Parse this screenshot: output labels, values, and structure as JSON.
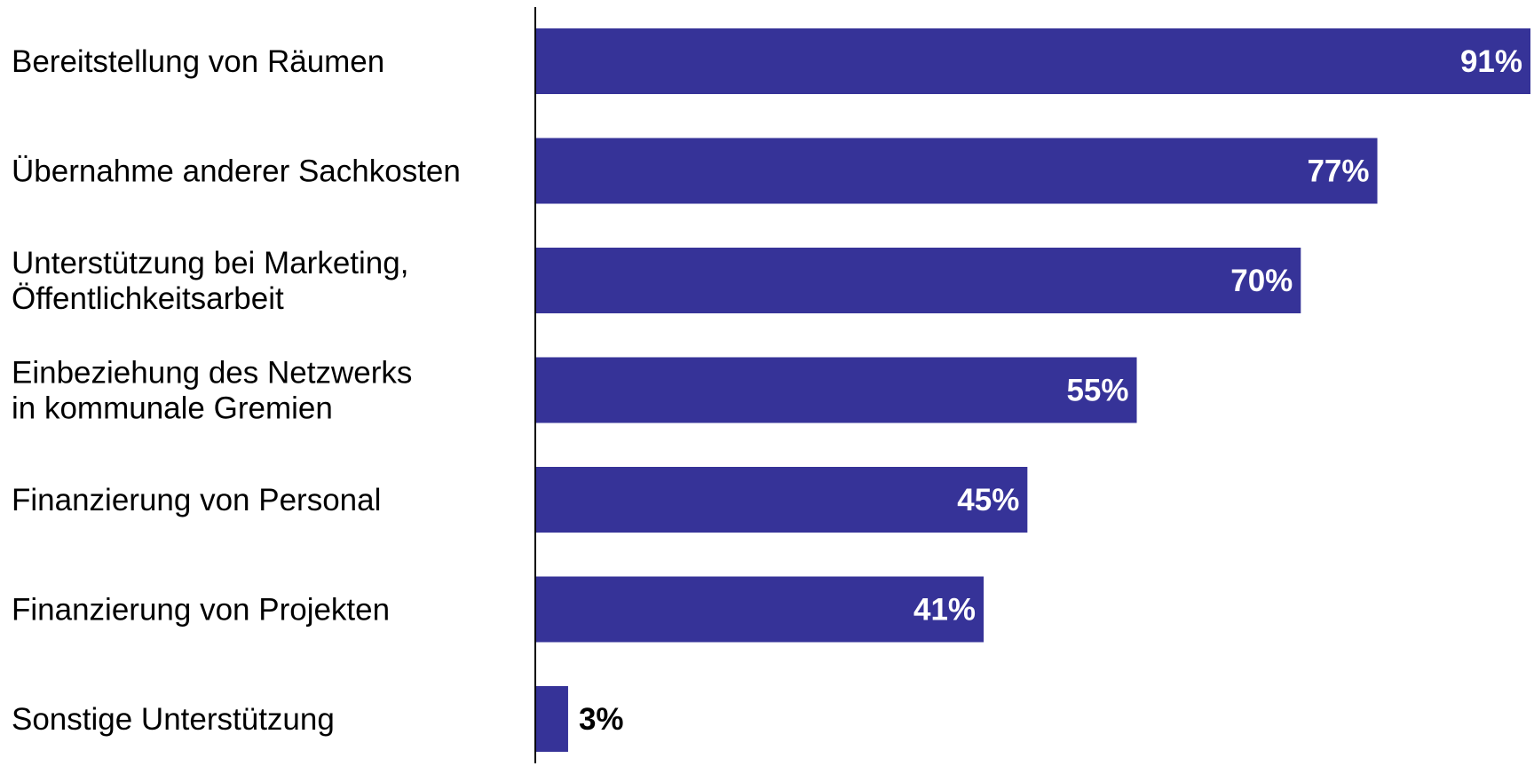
{
  "chart_data": {
    "type": "bar",
    "orientation": "horizontal",
    "categories": [
      [
        "Bereitstellung von Räumen"
      ],
      [
        "Übernahme anderer Sachkosten"
      ],
      [
        "Unterstützung bei Marketing,",
        "Öffentlichkeitsarbeit"
      ],
      [
        "Einbeziehung des Netzwerks",
        "in kommunale Gremien"
      ],
      [
        "Finanzierung von Personal"
      ],
      [
        "Finanzierung von Projekten"
      ],
      [
        "Sonstige Unterstützung"
      ]
    ],
    "values": [
      91,
      77,
      70,
      55,
      45,
      41,
      3
    ],
    "value_labels": [
      "91%",
      "77%",
      "70%",
      "55%",
      "45%",
      "41%",
      "3%"
    ],
    "unit": "%",
    "xlim": [
      0,
      91
    ],
    "grid": false,
    "legend": "none",
    "colors": {
      "bar": "#363398",
      "label_inside": "#ffffff",
      "label_outside": "#000000",
      "axis": "#000000",
      "text": "#000000"
    }
  }
}
